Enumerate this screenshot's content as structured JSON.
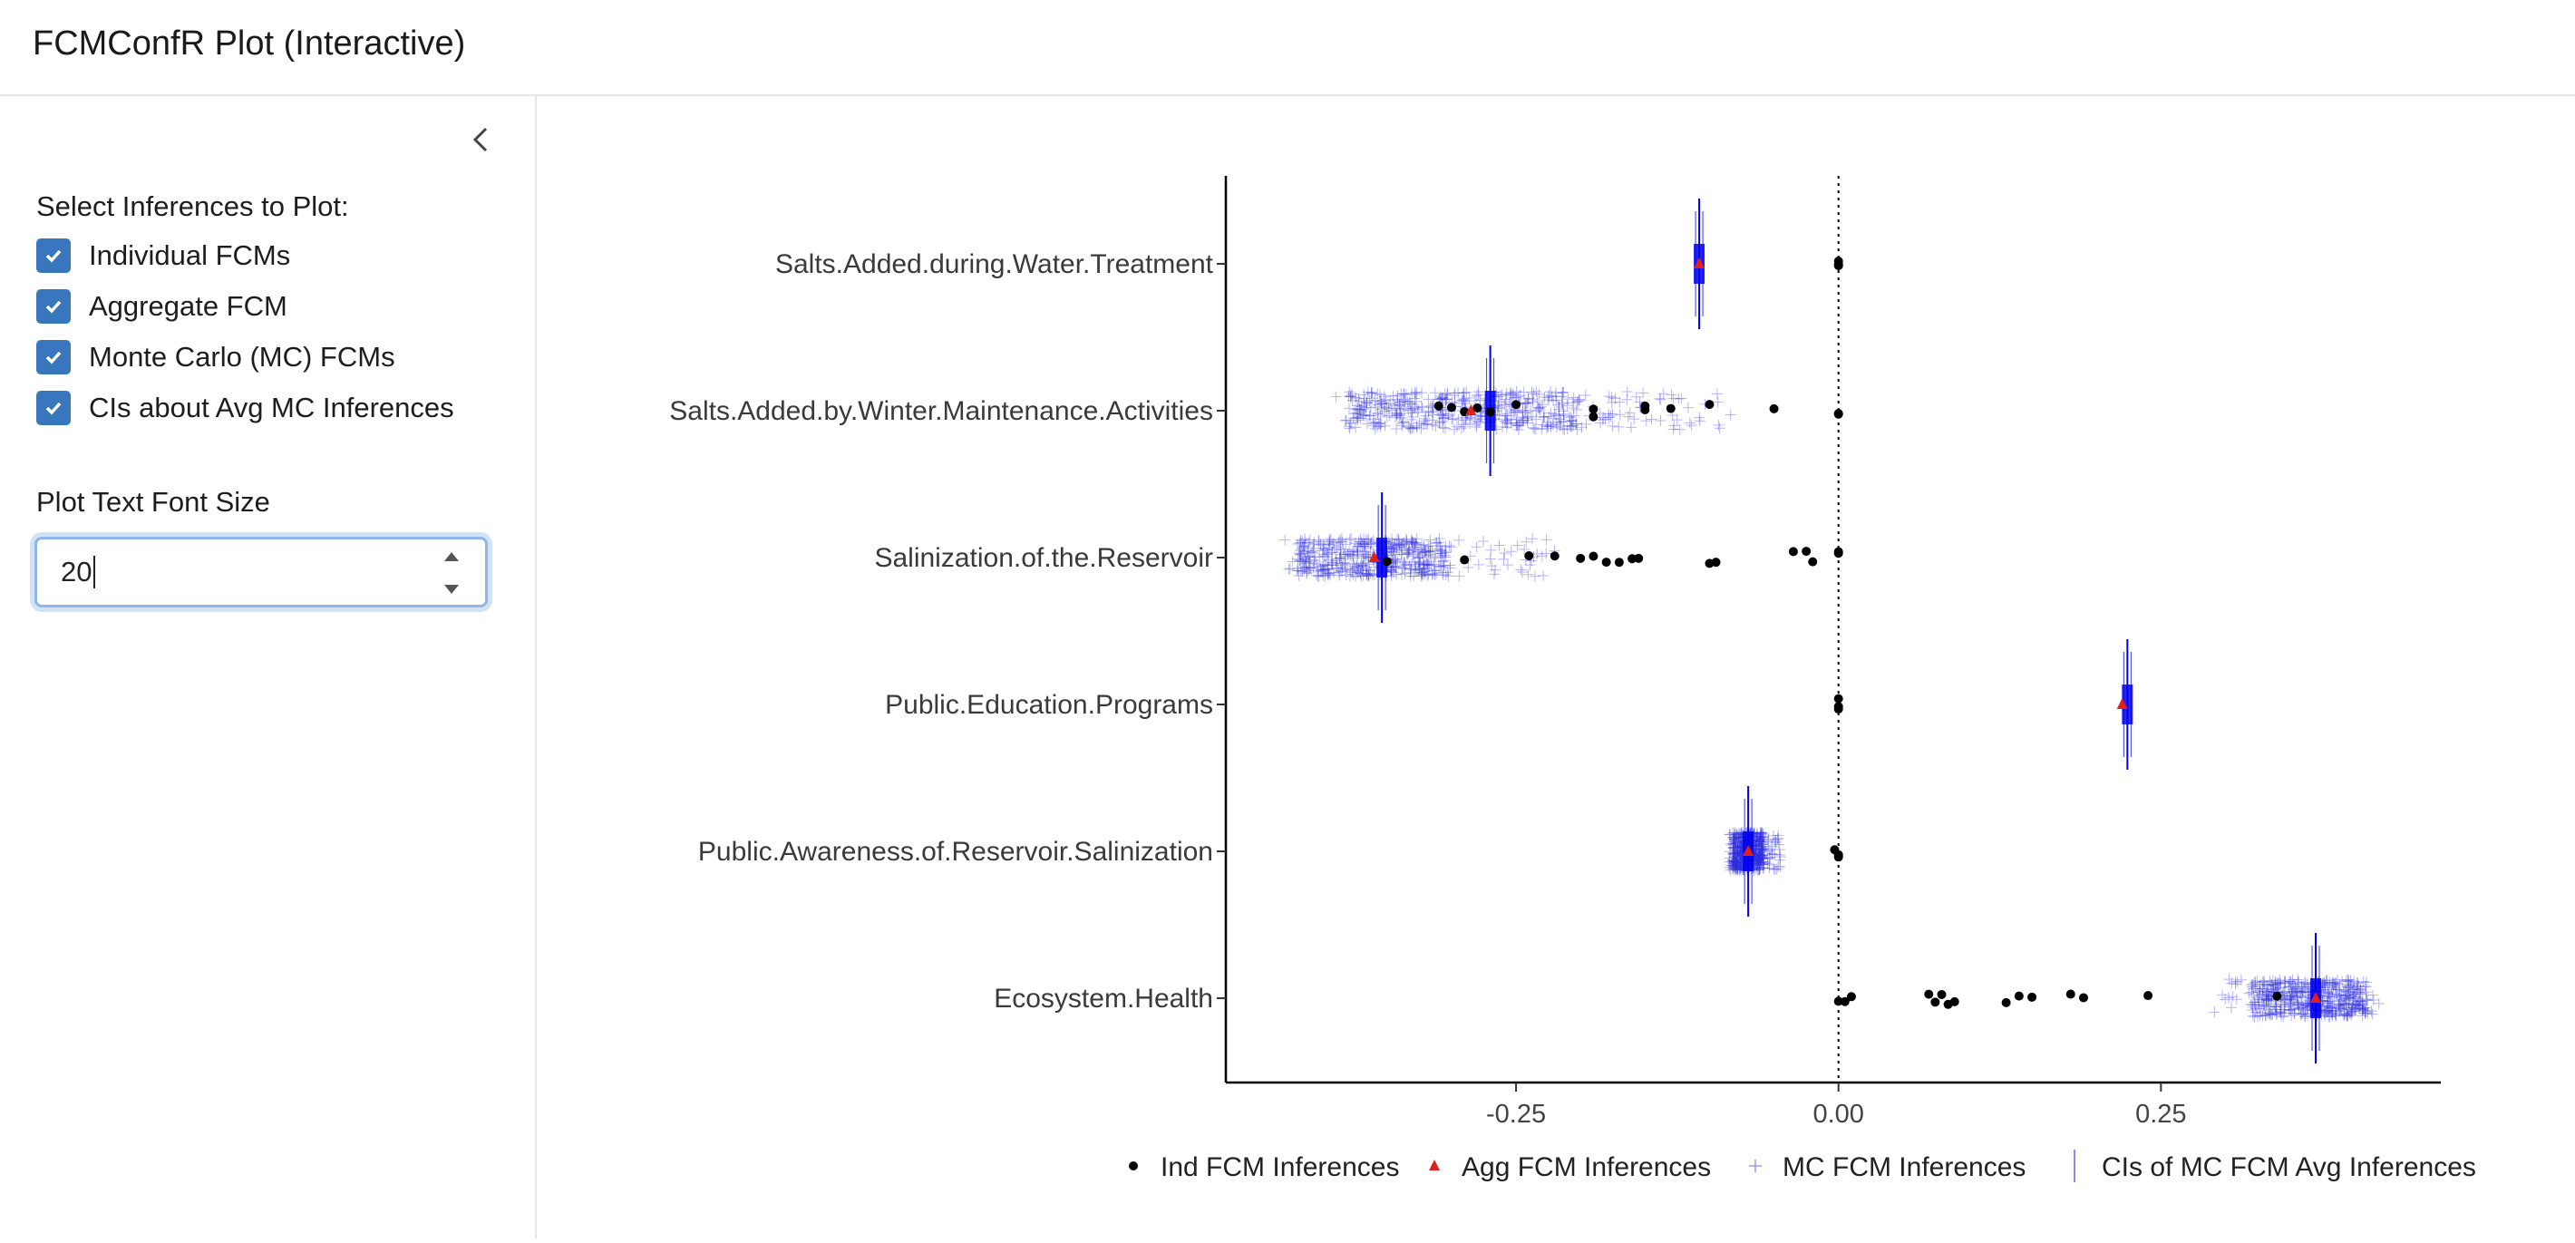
{
  "app": {
    "title": "FCMConfR Plot (Interactive)"
  },
  "sidebar": {
    "collapse_icon": "chevron-left-icon",
    "group_label": "Select Inferences to Plot:",
    "checkboxes": [
      {
        "label": "Individual FCMs",
        "checked": true
      },
      {
        "label": "Aggregate FCM",
        "checked": true
      },
      {
        "label": "Monte Carlo (MC) FCMs",
        "checked": true
      },
      {
        "label": "CIs about Avg MC Inferences",
        "checked": true
      }
    ],
    "font_size": {
      "label": "Plot Text Font Size",
      "value": "20"
    }
  },
  "colors": {
    "accent": "#3a76bd",
    "mc_points": "#2a2ae0",
    "ci_bar": "#0000ee",
    "agg_marker": "#e0201b",
    "ind_points": "#000000"
  },
  "chart_data": {
    "type": "scatter",
    "orientation": "horizontal",
    "categories": [
      "Salts.Added.during.Water.Treatment",
      "Salts.Added.by.Winter.Maintenance.Activities",
      "Salinization.of.the.Reservoir",
      "Public.Education.Programs",
      "Public.Awareness.of.Reservoir.Salinization",
      "Ecosystem.Health"
    ],
    "x_ticks": [
      "-0.25",
      "0.00",
      "0.25"
    ],
    "x_tick_values": [
      -0.25,
      0,
      0.25
    ],
    "xlim": [
      -0.475,
      0.467
    ],
    "reference_line": 0,
    "series": [
      {
        "name": "Ind FCM Inferences",
        "marker": "circle",
        "points": [
          [
            "Salts.Added.during.Water.Treatment",
            0
          ],
          [
            "Salts.Added.during.Water.Treatment",
            0
          ],
          [
            "Salts.Added.during.Water.Treatment",
            0
          ],
          [
            "Salts.Added.by.Winter.Maintenance.Activities",
            -0.31
          ],
          [
            "Salts.Added.by.Winter.Maintenance.Activities",
            -0.3
          ],
          [
            "Salts.Added.by.Winter.Maintenance.Activities",
            -0.29
          ],
          [
            "Salts.Added.by.Winter.Maintenance.Activities",
            -0.28
          ],
          [
            "Salts.Added.by.Winter.Maintenance.Activities",
            -0.27
          ],
          [
            "Salts.Added.by.Winter.Maintenance.Activities",
            -0.25
          ],
          [
            "Salts.Added.by.Winter.Maintenance.Activities",
            -0.19
          ],
          [
            "Salts.Added.by.Winter.Maintenance.Activities",
            -0.19
          ],
          [
            "Salts.Added.by.Winter.Maintenance.Activities",
            -0.15
          ],
          [
            "Salts.Added.by.Winter.Maintenance.Activities",
            -0.15
          ],
          [
            "Salts.Added.by.Winter.Maintenance.Activities",
            -0.13
          ],
          [
            "Salts.Added.by.Winter.Maintenance.Activities",
            -0.1
          ],
          [
            "Salts.Added.by.Winter.Maintenance.Activities",
            -0.05
          ],
          [
            "Salts.Added.by.Winter.Maintenance.Activities",
            0
          ],
          [
            "Salts.Added.by.Winter.Maintenance.Activities",
            0
          ],
          [
            "Salinization.of.the.Reservoir",
            -0.35
          ],
          [
            "Salinization.of.the.Reservoir",
            -0.29
          ],
          [
            "Salinization.of.the.Reservoir",
            -0.24
          ],
          [
            "Salinization.of.the.Reservoir",
            -0.22
          ],
          [
            "Salinization.of.the.Reservoir",
            -0.2
          ],
          [
            "Salinization.of.the.Reservoir",
            -0.19
          ],
          [
            "Salinization.of.the.Reservoir",
            -0.18
          ],
          [
            "Salinization.of.the.Reservoir",
            -0.17
          ],
          [
            "Salinization.of.the.Reservoir",
            -0.16
          ],
          [
            "Salinization.of.the.Reservoir",
            -0.155
          ],
          [
            "Salinization.of.the.Reservoir",
            -0.1
          ],
          [
            "Salinization.of.the.Reservoir",
            -0.095
          ],
          [
            "Salinization.of.the.Reservoir",
            -0.035
          ],
          [
            "Salinization.of.the.Reservoir",
            -0.025
          ],
          [
            "Salinization.of.the.Reservoir",
            -0.02
          ],
          [
            "Salinization.of.the.Reservoir",
            0
          ],
          [
            "Salinization.of.the.Reservoir",
            0
          ],
          [
            "Public.Education.Programs",
            0
          ],
          [
            "Public.Education.Programs",
            0
          ],
          [
            "Public.Education.Programs",
            0
          ],
          [
            "Public.Awareness.of.Reservoir.Salinization",
            -0.003
          ],
          [
            "Public.Awareness.of.Reservoir.Salinization",
            0
          ],
          [
            "Public.Awareness.of.Reservoir.Salinization",
            0
          ],
          [
            "Ecosystem.Health",
            0
          ],
          [
            "Ecosystem.Health",
            0.005
          ],
          [
            "Ecosystem.Health",
            0.01
          ],
          [
            "Ecosystem.Health",
            0.07
          ],
          [
            "Ecosystem.Health",
            0.075
          ],
          [
            "Ecosystem.Health",
            0.08
          ],
          [
            "Ecosystem.Health",
            0.085
          ],
          [
            "Ecosystem.Health",
            0.09
          ],
          [
            "Ecosystem.Health",
            0.13
          ],
          [
            "Ecosystem.Health",
            0.14
          ],
          [
            "Ecosystem.Health",
            0.15
          ],
          [
            "Ecosystem.Health",
            0.18
          ],
          [
            "Ecosystem.Health",
            0.19
          ],
          [
            "Ecosystem.Health",
            0.24
          ],
          [
            "Ecosystem.Health",
            0.34
          ]
        ]
      },
      {
        "name": "Agg FCM Inferences",
        "marker": "triangle",
        "points": [
          [
            "Salts.Added.during.Water.Treatment",
            -0.108
          ],
          [
            "Salts.Added.by.Winter.Maintenance.Activities",
            -0.285
          ],
          [
            "Salinization.of.the.Reservoir",
            -0.36
          ],
          [
            "Public.Education.Programs",
            0.22
          ],
          [
            "Public.Awareness.of.Reservoir.Salinization",
            -0.07
          ],
          [
            "Ecosystem.Health",
            0.37
          ]
        ]
      },
      {
        "name": "MC FCM Inferences",
        "marker": "plus",
        "clouds": [
          {
            "category": "Salts.Added.by.Winter.Maintenance.Activities",
            "range": [
              -0.39,
              -0.08
            ],
            "dense_range": [
              -0.38,
              -0.2
            ]
          },
          {
            "category": "Salinization.of.the.Reservoir",
            "range": [
              -0.43,
              -0.22
            ],
            "dense_range": [
              -0.42,
              -0.3
            ]
          },
          {
            "category": "Public.Awareness.of.Reservoir.Salinization",
            "range": [
              -0.085,
              -0.045
            ],
            "dense_range": [
              -0.082,
              -0.058
            ]
          },
          {
            "category": "Ecosystem.Health",
            "range": [
              0.29,
              0.42
            ],
            "dense_range": [
              0.32,
              0.41
            ]
          }
        ]
      },
      {
        "name": "CIs of MC FCM Avg Inferences",
        "marker": "vline",
        "intervals": [
          {
            "category": "Salts.Added.during.Water.Treatment",
            "center": -0.108
          },
          {
            "category": "Salts.Added.by.Winter.Maintenance.Activities",
            "center": -0.27
          },
          {
            "category": "Salinization.of.the.Reservoir",
            "center": -0.354
          },
          {
            "category": "Public.Education.Programs",
            "center": 0.224
          },
          {
            "category": "Public.Awareness.of.Reservoir.Salinization",
            "center": -0.07
          },
          {
            "category": "Ecosystem.Health",
            "center": 0.37
          }
        ]
      }
    ],
    "legend_position": "bottom",
    "legend": [
      "Ind FCM Inferences",
      "Agg FCM Inferences",
      "MC FCM Inferences",
      "CIs of MC FCM Avg Inferences"
    ]
  }
}
